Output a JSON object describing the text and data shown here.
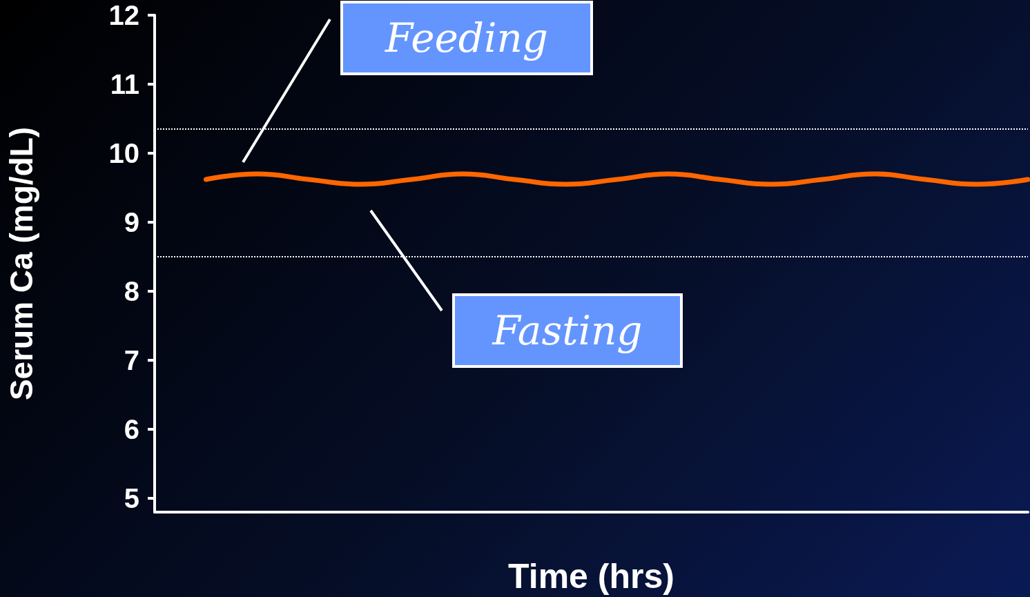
{
  "chart_data": {
    "type": "line",
    "xlabel": "Time (hrs)",
    "ylabel": "Serum Ca (mg/dL)",
    "categories": [
      null,
      null,
      null,
      null,
      null,
      null,
      null,
      null,
      null,
      null,
      null,
      null,
      null,
      null,
      null,
      null,
      null,
      null
    ],
    "series": [
      {
        "color": "#ff6600",
        "values": [
          null,
          9.62,
          9.7,
          9.62,
          9.55,
          9.62,
          9.7,
          9.62,
          9.55,
          9.62,
          9.7,
          9.62,
          9.55,
          9.62,
          9.7,
          9.62,
          9.55,
          9.62
        ]
      }
    ],
    "ylim": [
      4.8,
      12
    ],
    "yticks": [
      5,
      6,
      7,
      8,
      9,
      10,
      11,
      12
    ],
    "grid": false,
    "marker": "none",
    "line_style": "solid",
    "ref_lines": [
      {
        "axis": "y",
        "value": 10.35,
        "color": "#ffffff",
        "line_style": "dotted"
      },
      {
        "axis": "y",
        "value": 8.5,
        "color": "#ffffff",
        "line_style": "dotted"
      }
    ],
    "annotations": [
      "Feeding",
      "Fasting"
    ]
  }
}
